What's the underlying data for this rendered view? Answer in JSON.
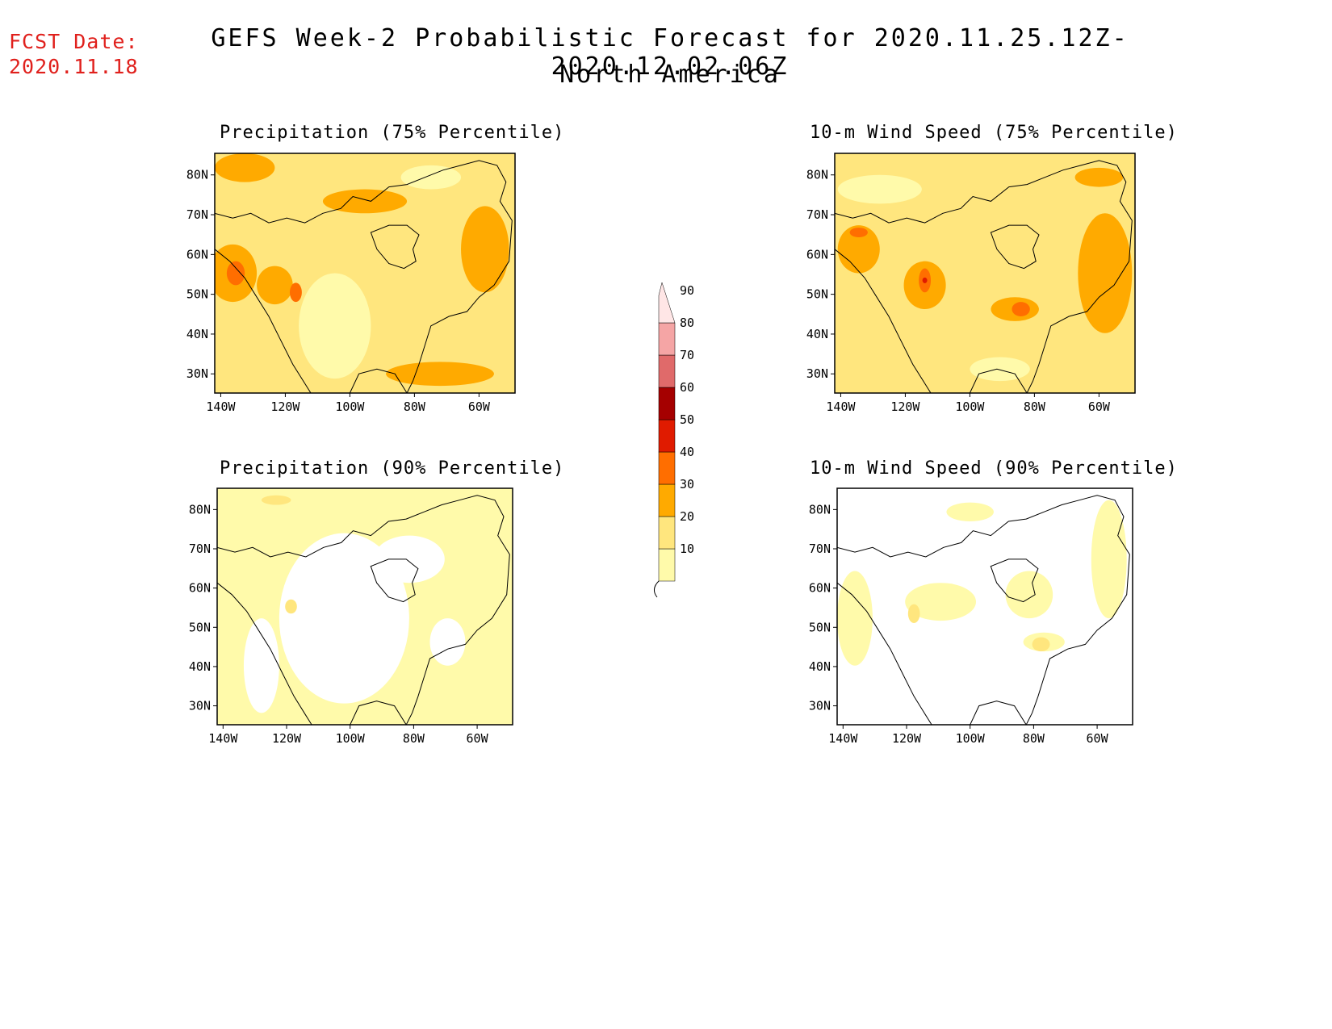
{
  "header": {
    "fcst_label": "FCST Date:",
    "fcst_date": "2020.11.18",
    "title": "GEFS Week-2 Probabilistic Forecast for 2020.11.25.12Z-2020.12.02.06Z",
    "subtitle": "North America"
  },
  "colors": {
    "c10": "#fffaaa",
    "c20": "#ffe67e",
    "c30": "#ffaa00",
    "c40": "#ff6e00",
    "c50": "#e01b00",
    "c60": "#a50000",
    "c70": "#e06a6a",
    "c80": "#f5a5a5",
    "c90": "#ffe6e6"
  },
  "colorbar": {
    "levels": [
      "10",
      "20",
      "30",
      "40",
      "50",
      "60",
      "70",
      "80",
      "90"
    ]
  },
  "axes": {
    "lon_labels": [
      "140W",
      "120W",
      "100W",
      "80W",
      "60W"
    ],
    "lat_labels": [
      "80N",
      "70N",
      "60N",
      "50N",
      "40N",
      "30N"
    ]
  },
  "panels": [
    {
      "id": "precip-75",
      "title": "Precipitation (75% Percentile)"
    },
    {
      "id": "wind-75",
      "title": "10-m Wind Speed (75% Percentile)"
    },
    {
      "id": "precip-90",
      "title": "Precipitation (90% Percentile)"
    },
    {
      "id": "wind-90",
      "title": "10-m Wind Speed (90% Percentile)"
    }
  ]
}
